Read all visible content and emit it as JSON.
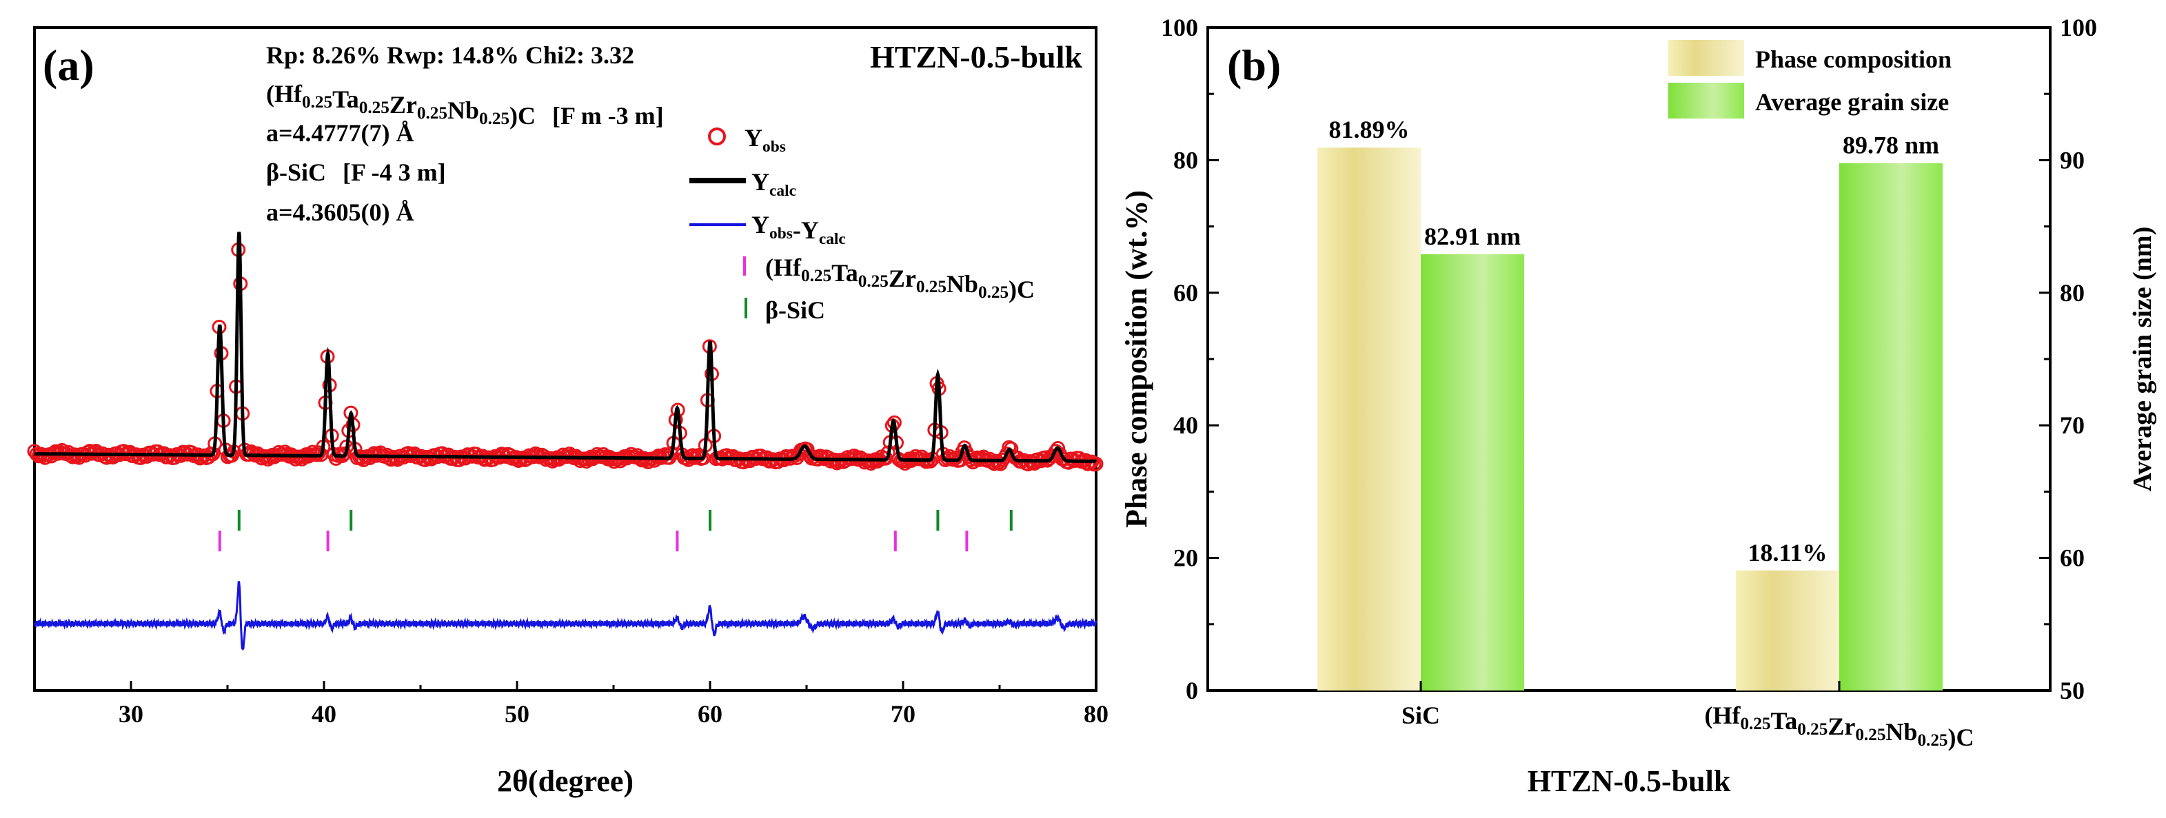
{
  "chart_data": [
    {
      "type": "line",
      "panel_label": "(a)",
      "sample_label": "HTZN-0.5-bulk",
      "xlabel": "2θ(degree)",
      "ylabel": "",
      "xlim": [
        25,
        80
      ],
      "xticks": [
        30,
        40,
        50,
        60,
        70,
        80
      ],
      "y_ticks_shown": false,
      "refinement": {
        "line1": "Rp: 8.26% Rwp: 14.8% Chi2: 3.32",
        "phase1_formula": "(Hf0.25Ta0.25Zr0.25Nb0.25)C",
        "phase1_space_group": "[F m -3 m]",
        "phase1_lattice": "a=4.4777(7) Å",
        "phase2_name": "β-SiC",
        "phase2_space_group": "[F -4 3 m]",
        "phase2_lattice": "a=4.3605(0) Å"
      },
      "legend": [
        {
          "label": "Yobs",
          "style": "open-circle",
          "color": "#e8141c"
        },
        {
          "label": "Ycalc",
          "style": "line",
          "color": "#000000"
        },
        {
          "label": "Yobs-Ycalc",
          "style": "line",
          "color": "#1515e0"
        },
        {
          "label": "(Hf0.25Ta0.25Zr0.25Nb0.25)C",
          "style": "tick",
          "color": "#e830e0"
        },
        {
          "label": "β-SiC",
          "style": "tick",
          "color": "#118a25"
        }
      ],
      "series": [
        {
          "name": "Yobs",
          "color": "#e8141c"
        },
        {
          "name": "Ycalc",
          "color": "#000000"
        },
        {
          "name": "Yobs-Ycalc",
          "color": "#1515e0"
        }
      ],
      "background_start": 0.135,
      "background_end": 0.095,
      "peaks": [
        {
          "x": 34.6,
          "height": 0.7,
          "width": 0.16,
          "diff": 0.1,
          "phase": "HEC"
        },
        {
          "x": 35.6,
          "height": 1.2,
          "width": 0.14,
          "diff": 0.35,
          "phase": "SiC"
        },
        {
          "x": 40.2,
          "height": 0.55,
          "width": 0.16,
          "diff": 0.06,
          "phase": "HEC"
        },
        {
          "x": 41.4,
          "height": 0.23,
          "width": 0.16,
          "diff": 0.05,
          "phase": "SiC"
        },
        {
          "x": 58.3,
          "height": 0.27,
          "width": 0.18,
          "diff": 0.05,
          "phase": "HEC"
        },
        {
          "x": 60.0,
          "height": 0.63,
          "width": 0.16,
          "diff": 0.14,
          "phase": "SiC"
        },
        {
          "x": 64.9,
          "height": 0.07,
          "width": 0.3,
          "diff": 0.06,
          "phase": "none"
        },
        {
          "x": 69.5,
          "height": 0.21,
          "width": 0.18,
          "diff": 0.04,
          "phase": "HEC"
        },
        {
          "x": 71.8,
          "height": 0.46,
          "width": 0.16,
          "diff": 0.1,
          "phase": "SiC"
        },
        {
          "x": 73.2,
          "height": 0.08,
          "width": 0.18,
          "diff": 0.03,
          "phase": "HEC"
        },
        {
          "x": 75.5,
          "height": 0.06,
          "width": 0.2,
          "diff": 0.02,
          "phase": "SiC"
        },
        {
          "x": 78.0,
          "height": 0.07,
          "width": 0.25,
          "diff": 0.05,
          "phase": "none"
        }
      ],
      "hec_reflections": [
        34.6,
        40.2,
        58.3,
        69.6,
        73.3
      ],
      "sic_reflections": [
        35.6,
        41.4,
        60.0,
        71.8,
        75.6
      ]
    },
    {
      "type": "bar",
      "panel_label": "(b)",
      "categories": [
        "SiC",
        "(Hf0.25Ta0.25Zr0.25Nb0.25)C"
      ],
      "xlabel": "HTZN-0.5-bulk",
      "ylabel": "Phase composition (wt.%)",
      "ylim": [
        0,
        100
      ],
      "yticks": [
        0,
        20,
        40,
        60,
        80,
        100
      ],
      "y2label": "Average grain size (nm)",
      "y2lim": [
        50,
        100
      ],
      "y2ticks": [
        50,
        60,
        70,
        80,
        90,
        100
      ],
      "legend_position": "top-right",
      "series": [
        {
          "name": "Phase composition",
          "axis": "left",
          "color": "#eae08e",
          "values": [
            81.89,
            18.11
          ],
          "labels": [
            "81.89%",
            "18.11%"
          ]
        },
        {
          "name": "Average grain size",
          "axis": "right",
          "color": "#8ee84e",
          "values": [
            82.91,
            89.78
          ],
          "labels": [
            "82.91 nm",
            "89.78 nm"
          ]
        }
      ]
    }
  ]
}
